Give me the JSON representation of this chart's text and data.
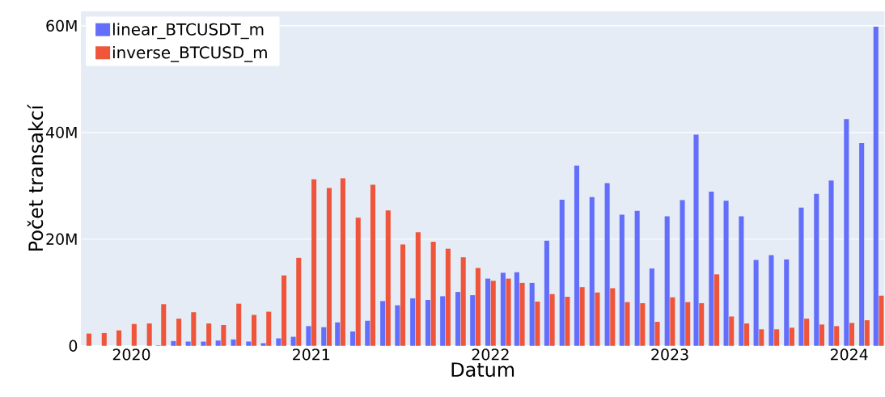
{
  "chart_data": {
    "type": "bar",
    "xlabel": "Datum",
    "ylabel": "Počet transakcí",
    "x": [
      "2019-10",
      "2019-11",
      "2019-12",
      "2020-01",
      "2020-02",
      "2020-03",
      "2020-04",
      "2020-05",
      "2020-06",
      "2020-07",
      "2020-08",
      "2020-09",
      "2020-10",
      "2020-11",
      "2020-12",
      "2021-01",
      "2021-02",
      "2021-03",
      "2021-04",
      "2021-05",
      "2021-06",
      "2021-07",
      "2021-08",
      "2021-09",
      "2021-10",
      "2021-11",
      "2021-12",
      "2022-01",
      "2022-02",
      "2022-03",
      "2022-04",
      "2022-05",
      "2022-06",
      "2022-07",
      "2022-08",
      "2022-09",
      "2022-10",
      "2022-11",
      "2022-12",
      "2023-01",
      "2023-02",
      "2023-03",
      "2023-04",
      "2023-05",
      "2023-06",
      "2023-07",
      "2023-08",
      "2023-09",
      "2023-10",
      "2023-11",
      "2023-12",
      "2024-01",
      "2024-02",
      "2024-03"
    ],
    "series": [
      {
        "name": "linear_BTCUSDT_m",
        "color": "#636efa",
        "values": [
          0,
          0,
          0,
          0,
          0,
          100000,
          900000,
          800000,
          800000,
          1000000,
          1200000,
          800000,
          500000,
          1400000,
          1700000,
          3700000,
          3500000,
          4400000,
          2700000,
          4700000,
          8400000,
          7600000,
          8900000,
          8600000,
          9300000,
          10100000,
          9500000,
          12600000,
          13700000,
          13800000,
          11800000,
          19700000,
          27400000,
          33800000,
          27900000,
          30500000,
          24600000,
          25300000,
          14500000,
          24300000,
          27300000,
          39600000,
          28900000,
          27200000,
          24300000,
          16100000,
          17000000,
          16200000,
          25900000,
          28500000,
          31000000,
          42500000,
          38000000,
          59800000
        ]
      },
      {
        "name": "inverse_BTCUSD_m",
        "color": "#ef553b",
        "values": [
          2300000,
          2400000,
          2900000,
          4100000,
          4200000,
          7800000,
          5100000,
          6300000,
          4200000,
          3900000,
          7900000,
          5800000,
          6400000,
          13200000,
          16500000,
          31200000,
          29600000,
          31400000,
          24000000,
          30200000,
          25400000,
          19000000,
          21300000,
          19500000,
          18200000,
          16600000,
          14600000,
          12200000,
          12600000,
          11800000,
          8300000,
          9700000,
          9200000,
          11000000,
          10000000,
          10800000,
          8200000,
          8000000,
          4500000,
          9100000,
          8200000,
          8000000,
          13400000,
          5500000,
          4200000,
          3100000,
          3100000,
          3400000,
          5100000,
          4000000,
          3700000,
          4300000,
          4800000,
          9400000
        ]
      }
    ],
    "xlim": [
      "2019-09-20",
      "2024-03-13"
    ],
    "xticks": [
      {
        "value": "2020",
        "label": "2020"
      },
      {
        "value": "2021",
        "label": "2021"
      },
      {
        "value": "2022",
        "label": "2022"
      },
      {
        "value": "2023",
        "label": "2023"
      },
      {
        "value": "2024",
        "label": "2024"
      }
    ],
    "ylim": [
      0,
      62700000
    ],
    "yticks": [
      {
        "value": 0,
        "label": "0"
      },
      {
        "value": 20000000,
        "label": "20M"
      },
      {
        "value": 40000000,
        "label": "40M"
      },
      {
        "value": 60000000,
        "label": "60M"
      }
    ],
    "grid": "y",
    "legend": "top left"
  }
}
